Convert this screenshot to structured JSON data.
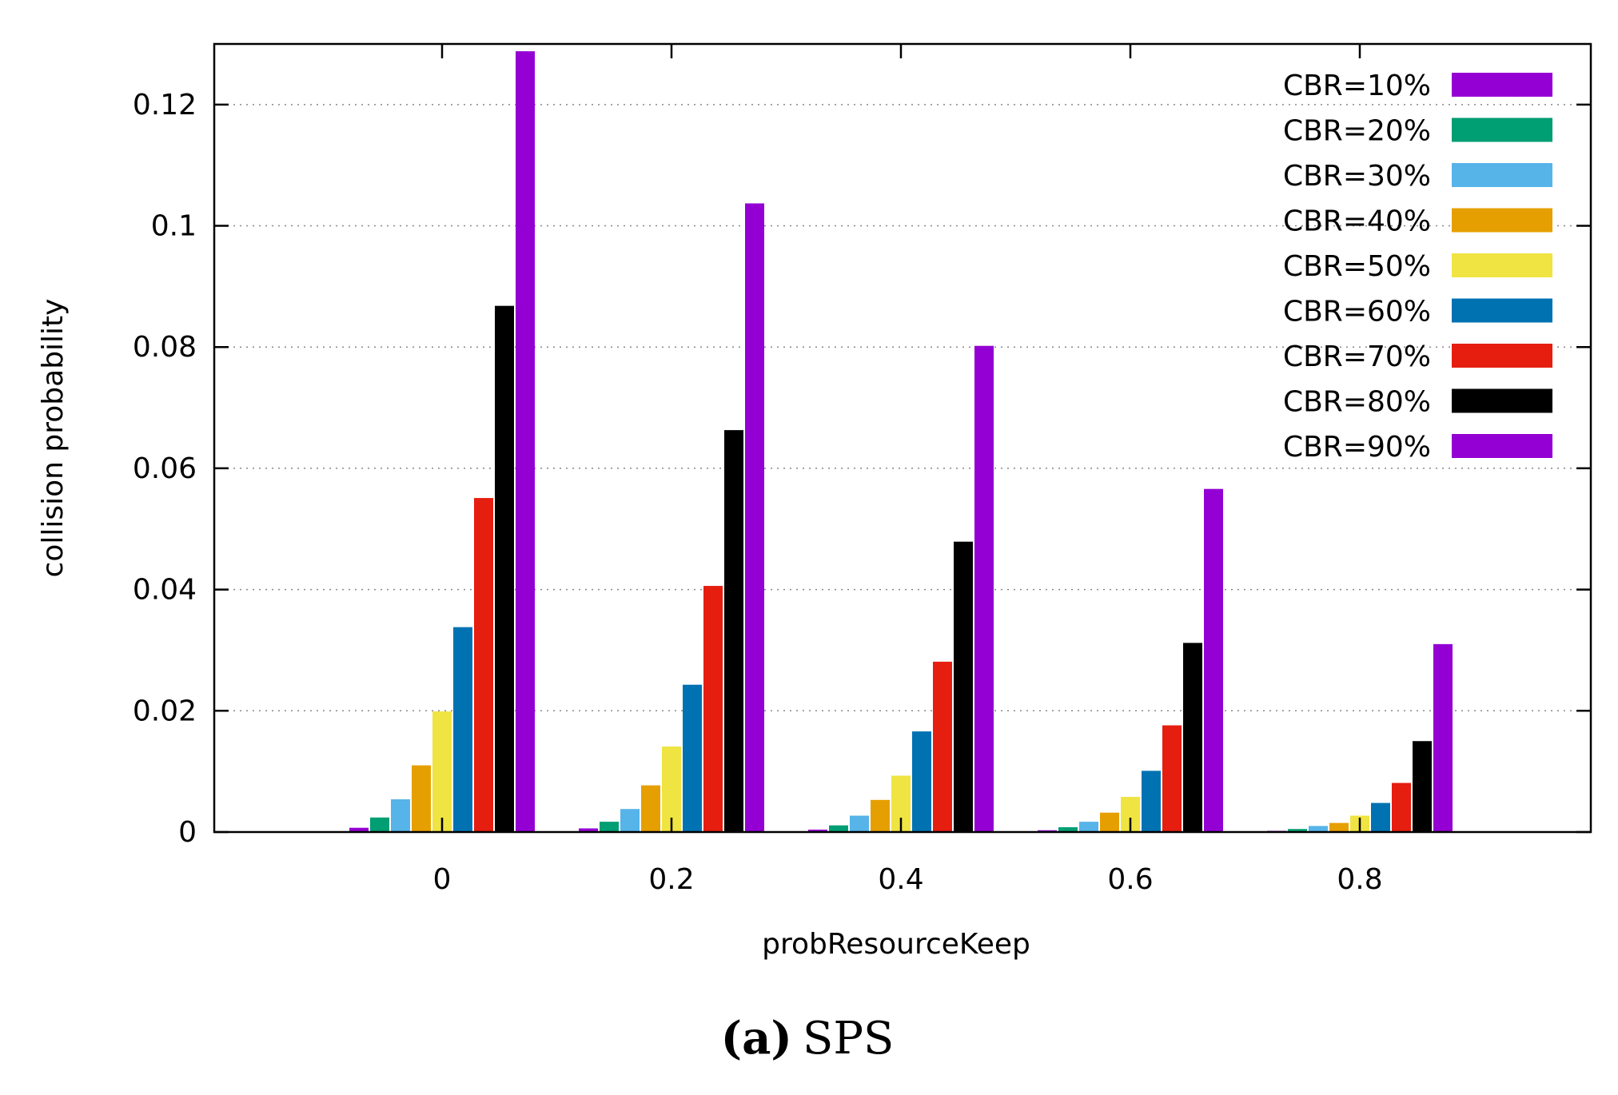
{
  "chart_data": {
    "type": "bar",
    "title": "",
    "xlabel": "probResourceKeep",
    "ylabel": "collision probability",
    "categories": [
      "0",
      "0.2",
      "0.4",
      "0.6",
      "0.8"
    ],
    "ylim": [
      0,
      0.13
    ],
    "yticks": [
      "0",
      "0.02",
      "0.04",
      "0.06",
      "0.08",
      "0.1",
      "0.12"
    ],
    "ytick_values": [
      0,
      0.02,
      0.04,
      0.06,
      0.08,
      0.1,
      0.12
    ],
    "grid": "horizontal dotted",
    "legend_position": "top-right",
    "series": [
      {
        "name": "CBR=10%",
        "color": "#9400d3",
        "values": [
          0.0007,
          0.0006,
          0.0004,
          0.0003,
          0.0002
        ]
      },
      {
        "name": "CBR=20%",
        "color": "#009e73",
        "values": [
          0.0024,
          0.0017,
          0.0011,
          0.0008,
          0.0005
        ]
      },
      {
        "name": "CBR=30%",
        "color": "#56b4e9",
        "values": [
          0.0054,
          0.0038,
          0.0027,
          0.0017,
          0.001
        ]
      },
      {
        "name": "CBR=40%",
        "color": "#e69f00",
        "values": [
          0.011,
          0.0077,
          0.0053,
          0.0032,
          0.0015
        ]
      },
      {
        "name": "CBR=50%",
        "color": "#f0e442",
        "values": [
          0.0199,
          0.0141,
          0.0093,
          0.0058,
          0.0027
        ]
      },
      {
        "name": "CBR=60%",
        "color": "#0072b2",
        "values": [
          0.0338,
          0.0243,
          0.0166,
          0.0101,
          0.0048
        ]
      },
      {
        "name": "CBR=70%",
        "color": "#e51e10",
        "values": [
          0.0551,
          0.0406,
          0.0281,
          0.0176,
          0.0081
        ]
      },
      {
        "name": "CBR=80%",
        "color": "#000000",
        "values": [
          0.0868,
          0.0663,
          0.0479,
          0.0312,
          0.015
        ]
      },
      {
        "name": "CBR=90%",
        "color": "#9400d3",
        "values": [
          0.1288,
          0.1037,
          0.0802,
          0.0566,
          0.031
        ]
      }
    ]
  },
  "caption": {
    "label": "(a)",
    "text": "SPS"
  }
}
